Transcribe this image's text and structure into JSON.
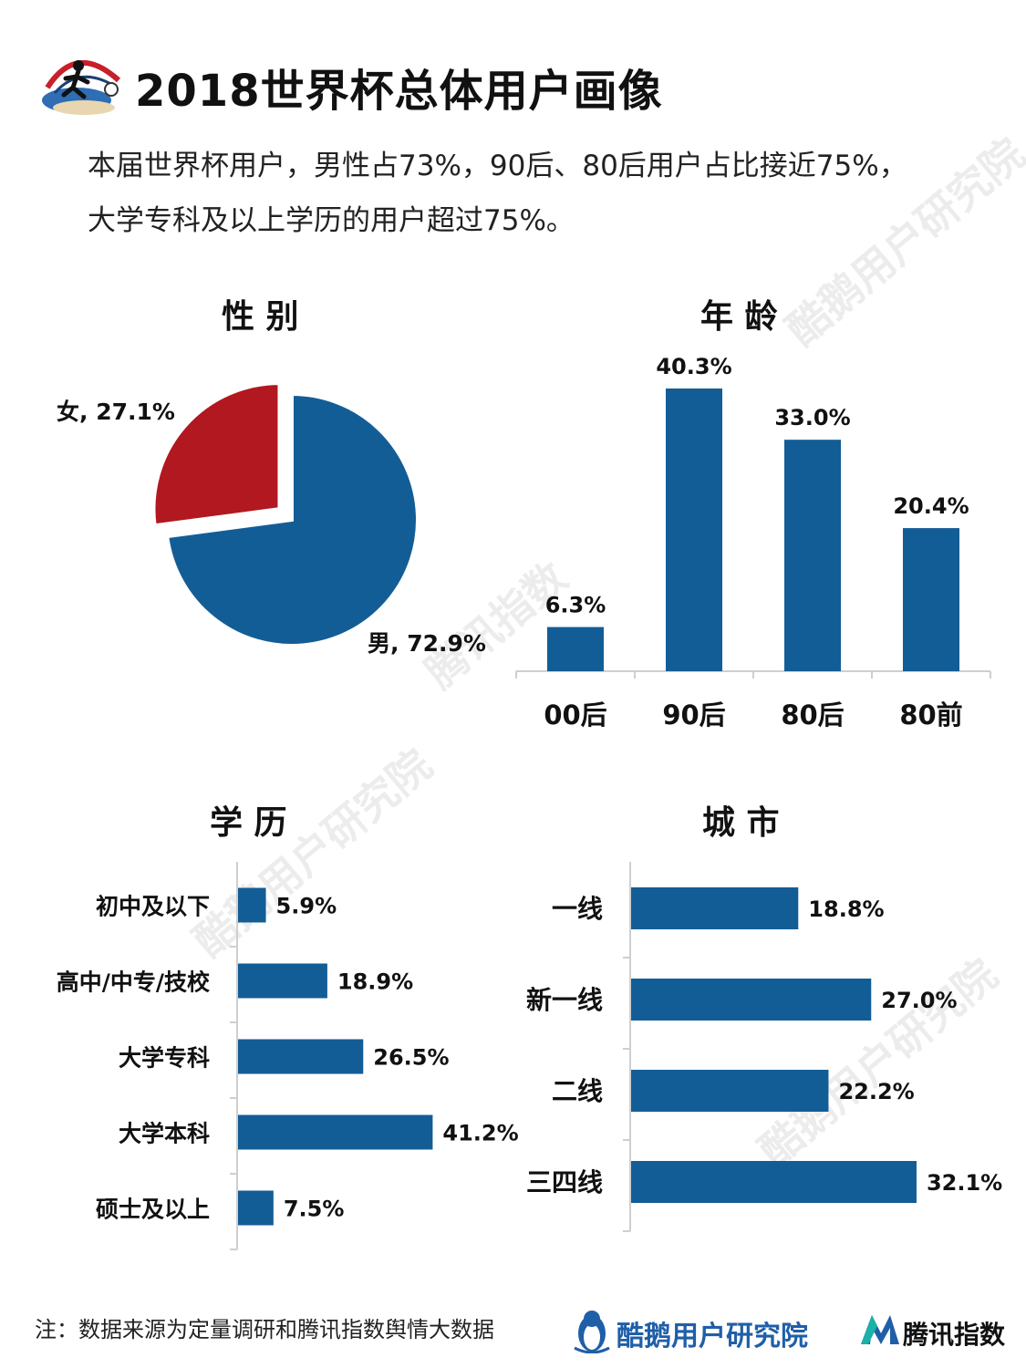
{
  "header": {
    "title": "2018世界杯总体用户画像",
    "intro_line1": "本届世界杯用户，男性占73%，90后、80后用户占比接近75%，",
    "intro_line2": "大学专科及以上学历的用户超过75%。"
  },
  "colors": {
    "primary": "#135d97",
    "accent": "#b11820",
    "text": "#111111"
  },
  "chart_data": [
    {
      "type": "pie",
      "title": "性 别",
      "labels": [
        "男",
        "女"
      ],
      "values": [
        72.9,
        27.1
      ],
      "data_labels": [
        "男, 72.9%",
        "女, 27.1%"
      ],
      "colors": [
        "#135d97",
        "#b11820"
      ],
      "exploded": [
        "女"
      ]
    },
    {
      "type": "bar",
      "title": "年 龄",
      "categories": [
        "00后",
        "90后",
        "80后",
        "80前"
      ],
      "values": [
        6.3,
        40.3,
        33.0,
        20.4
      ],
      "data_labels": [
        "6.3%",
        "40.3%",
        "33.0%",
        "20.4%"
      ],
      "color": "#135d97"
    },
    {
      "type": "bar",
      "orientation": "horizontal",
      "title": "学 历",
      "categories": [
        "初中及以下",
        "高中/中专/技校",
        "大学专科",
        "大学本科",
        "硕士及以上"
      ],
      "values": [
        5.9,
        18.9,
        26.5,
        41.2,
        7.5
      ],
      "data_labels": [
        "5.9%",
        "18.9%",
        "26.5%",
        "41.2%",
        "7.5%"
      ],
      "color": "#135d97"
    },
    {
      "type": "bar",
      "orientation": "horizontal",
      "title": "城 市",
      "categories": [
        "一线",
        "新一线",
        "二线",
        "三四线"
      ],
      "values": [
        18.8,
        27.0,
        22.2,
        32.1
      ],
      "data_labels": [
        "18.8%",
        "27.0%",
        "22.2%",
        "32.1%"
      ],
      "color": "#135d97"
    }
  ],
  "footer": {
    "note": "注：数据来源为定量调研和腾讯指数舆情大数据",
    "brand1": "酷鹅用户研究院",
    "brand2": "腾讯指数"
  },
  "watermarks": {
    "w1": "酷鹅用户研究院",
    "w2": "腾讯指数"
  },
  "icons": {
    "logo": "world-cup-player-icon",
    "brand1": "penguin-icon",
    "brand2": "tencent-index-icon"
  }
}
